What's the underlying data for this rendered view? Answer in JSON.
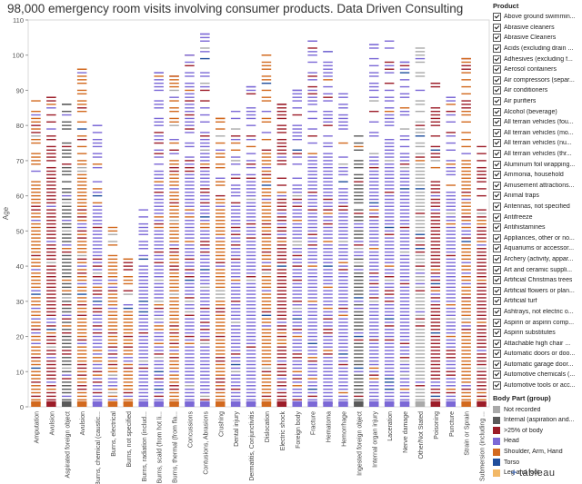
{
  "title": "98,000 emergency room visits involving consumer products. Data Driven Consulting",
  "chart_data": {
    "type": "strip",
    "title": "98,000 emergency room visits involving consumer products. Data Driven Consulting",
    "xlabel": "",
    "ylabel": "Age",
    "ylim": [
      0,
      110
    ],
    "yticks": [
      0,
      10,
      20,
      30,
      40,
      50,
      60,
      70,
      80,
      90,
      100,
      110
    ],
    "categories": [
      "Amputation",
      "Avulsion",
      "Aspirated foreign object",
      "Avulsion",
      "Burns, chemical (caustic...",
      "Burns, electrical",
      "Burns, not specified",
      "Burns, radiation (includ...",
      "Burns, scald (from hot li...",
      "Burns, thermal (from fla...",
      "Concussions",
      "Contusions, Abrasions",
      "Crushing",
      "Dental injury",
      "Dermatitis, Conjunctivitis",
      "Dislocation",
      "Electric shock",
      "Foreign body",
      "Fracture",
      "Hematoma",
      "Hemorrhage",
      "Ingested foreign object",
      "Internal organ injury",
      "Laceration",
      "Nerve damage",
      "Other/Not Stated",
      "Poisoning",
      "Puncture",
      "Strain or Sprain",
      "Submersion (including ..."
    ],
    "max_age": [
      87,
      88,
      86,
      96,
      80,
      51,
      42,
      56,
      95,
      94,
      100,
      106,
      82,
      84,
      91,
      100,
      86,
      90,
      104,
      101,
      89,
      77,
      103,
      104,
      98,
      102,
      92,
      88,
      99,
      74
    ],
    "dominant_part": [
      "Shoulder, Arm, Hand",
      ">25% of body",
      "Internal (aspiration and...",
      "Shoulder, Arm, Hand",
      "Head",
      "Shoulder, Arm, Hand",
      "Shoulder, Arm, Hand",
      "Head",
      "Head",
      "Shoulder, Arm, Hand",
      "Head",
      "Head",
      "Shoulder, Arm, Hand",
      "Head",
      "Head",
      "Shoulder, Arm, Hand",
      ">25% of body",
      "Head",
      "Head",
      "Head",
      "Head",
      "Internal (aspiration and...",
      "Head",
      "Head",
      "Head",
      "Not recorded",
      ">25% of body",
      "Head",
      "Shoulder, Arm, Hand",
      ">25% of body"
    ]
  },
  "legend": {
    "product_header": "Product",
    "products": [
      "Above ground swimmin...",
      "Abrasive cleaners",
      "Abrasive Cleaners",
      "Acids (excluding drain ...",
      "Adhesives (excluding f...",
      "Aerosol containers",
      "Air compressors (separ...",
      "Air conditioners",
      "Air purifiers",
      "Alcohol (beverage)",
      "All terrain vehicles (fou...",
      "All terrain vehicles (mo...",
      "All terrain vehicles (nu...",
      "All terrain vehicles (thr...",
      "Aluminum foil wrapping...",
      "Ammonia, household",
      "Amusement attractions...",
      "Animal traps",
      "Antennas, not specified",
      "Antifreeze",
      "Antihistamines",
      "Appliances, other or no...",
      "Aquariums or accessor...",
      "Archery (activity, appar...",
      "Art and ceramic suppli...",
      "Artificial Christmas trees",
      "Artificial flowers or plan...",
      "Artificial turf",
      "Ashtrays, not electric o...",
      "Aspirin or aspirin comp...",
      "Aspirin substitutes",
      "Attachable high chair ...",
      "Automatic doors or doo...",
      "Automatic garage door...",
      "Automotive chemicals (...",
      "Automotive tools or acc..."
    ],
    "bodypart_header": "Body Part (group)",
    "body_parts": [
      {
        "label": "Not recorded",
        "color": "#a9a9a9"
      },
      {
        "label": "Internal (aspiration and...",
        "color": "#5a5a5a"
      },
      {
        "label": ">25% of body",
        "color": "#9c1c28"
      },
      {
        "label": "Head",
        "color": "#7b68d6"
      },
      {
        "label": "Shoulder, Arm, Hand",
        "color": "#d2691e"
      },
      {
        "label": "Torso",
        "color": "#1f4e9c"
      },
      {
        "label": "Leg and foot",
        "color": "#f2b866"
      }
    ]
  },
  "branding": {
    "logo_text": "tableau"
  }
}
